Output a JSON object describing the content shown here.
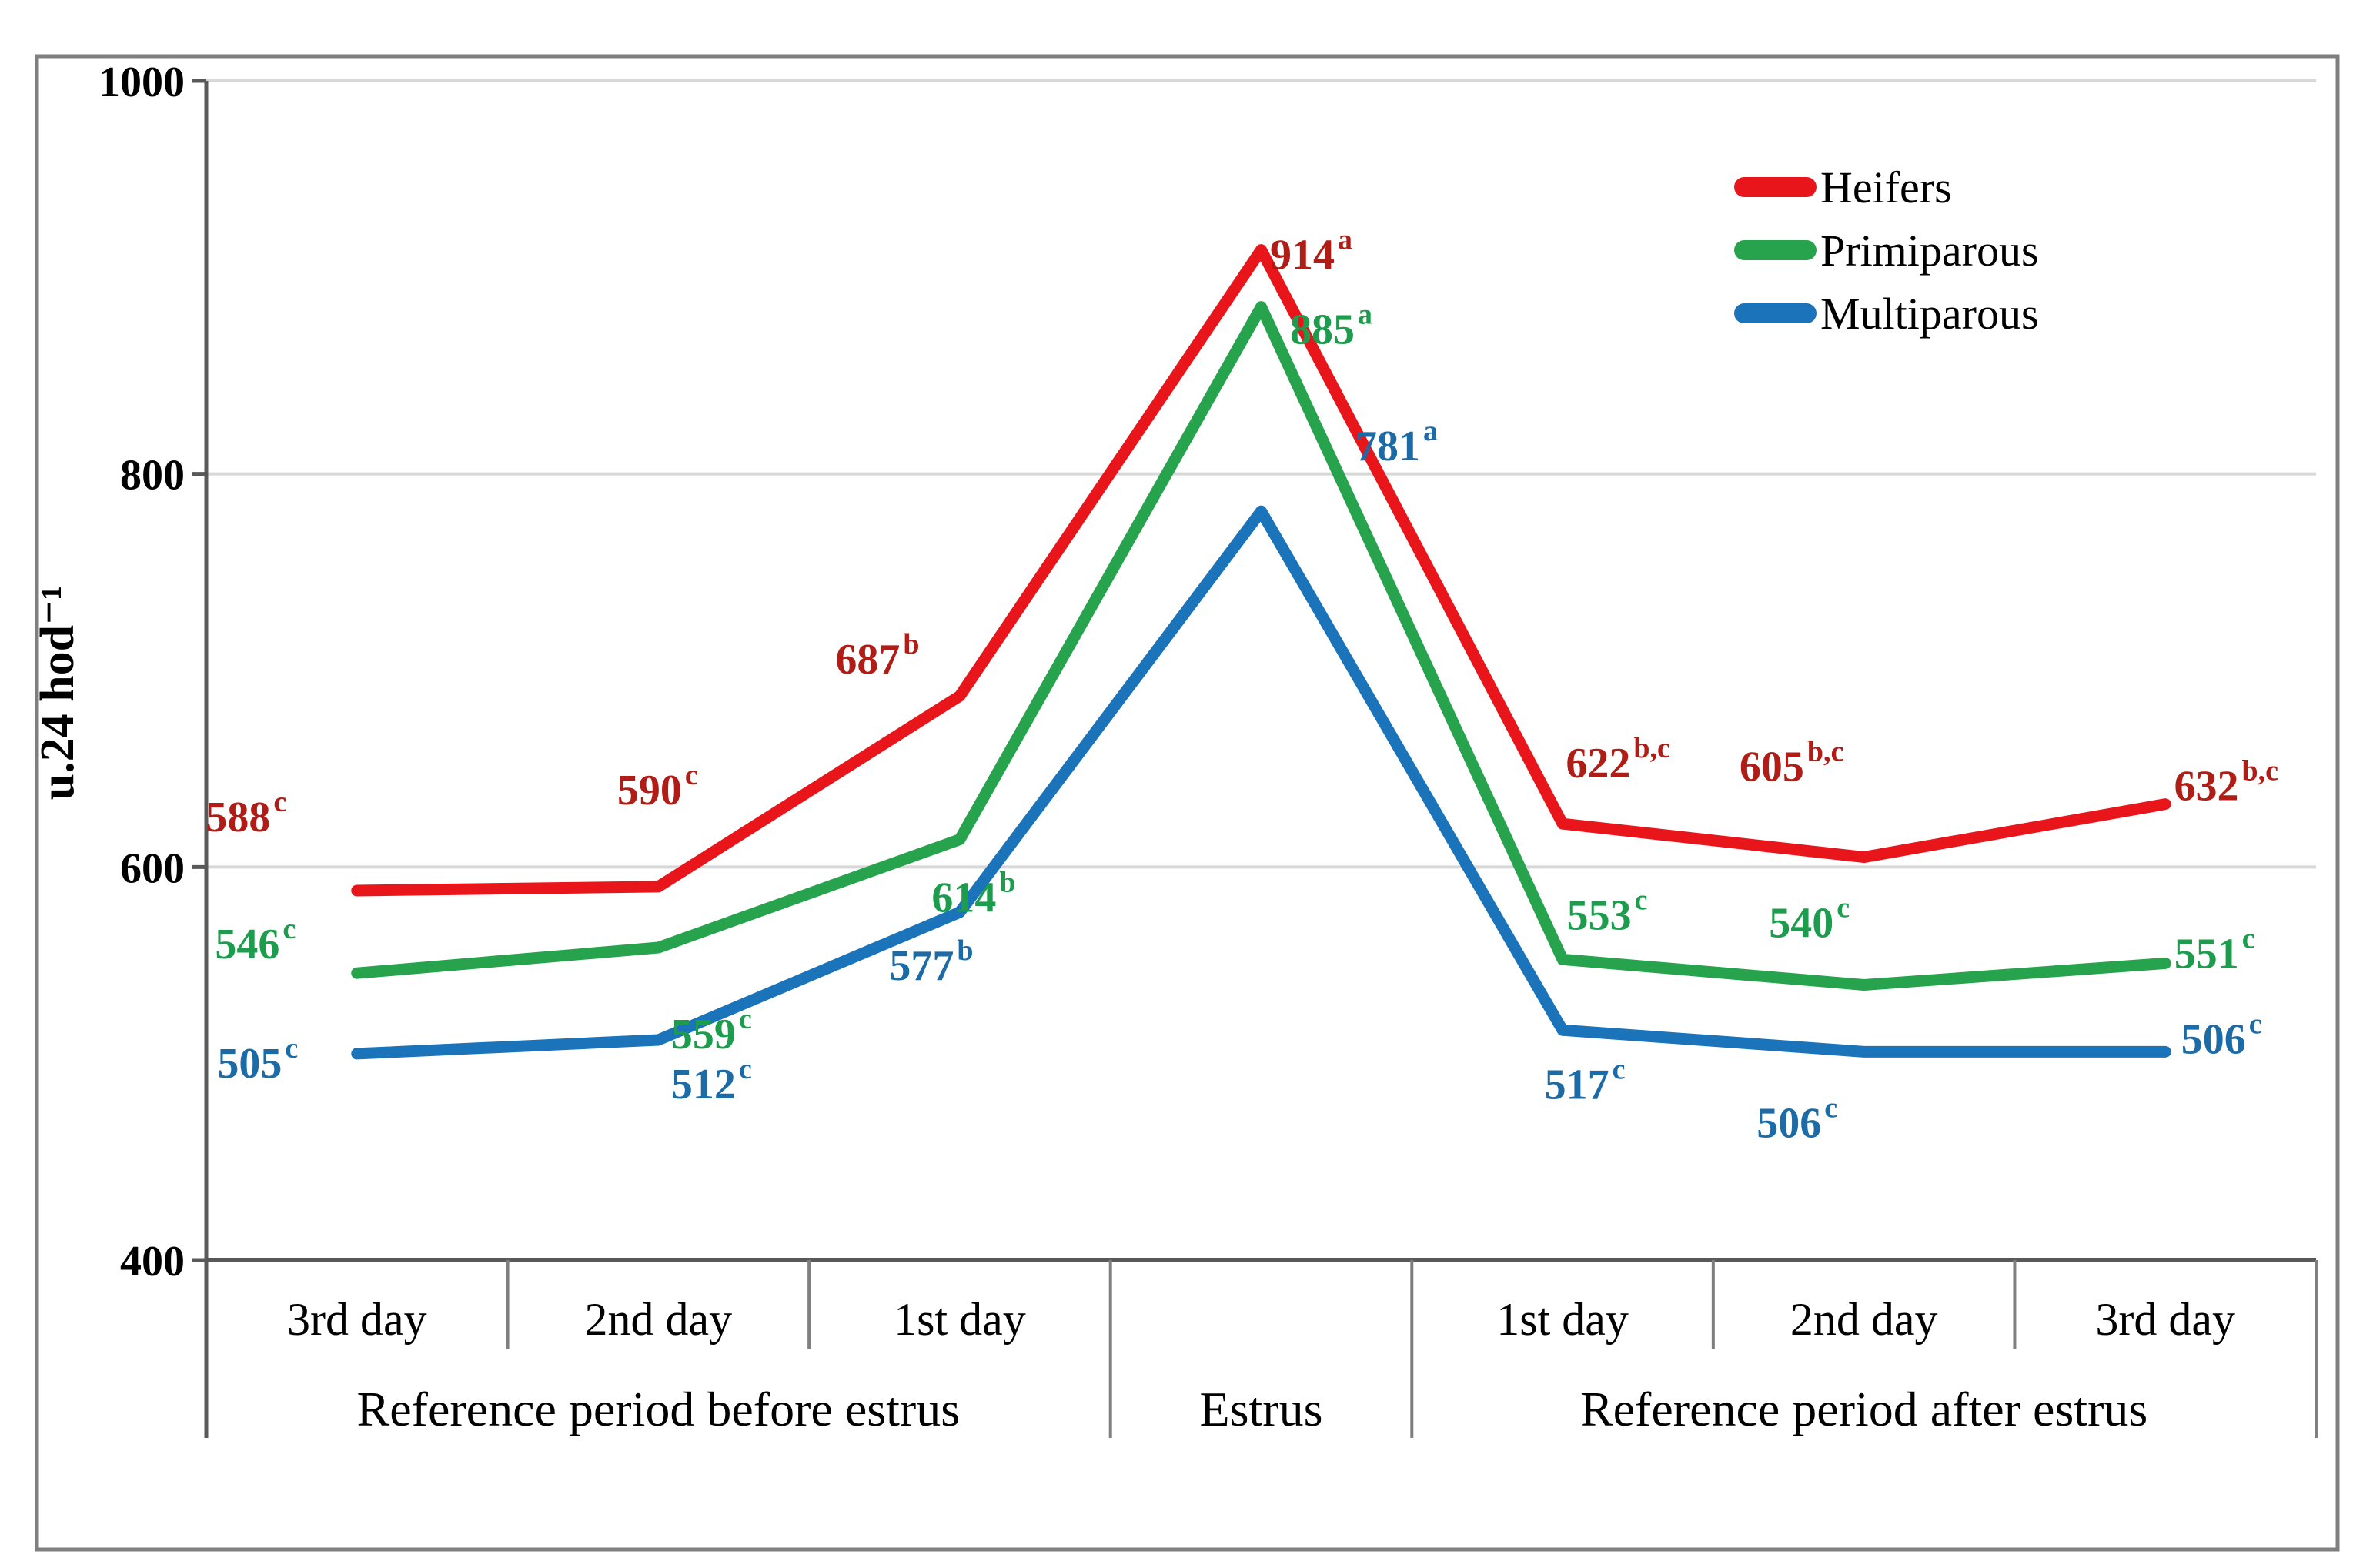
{
  "chart_data": {
    "type": "line",
    "title": "",
    "ylabel": "u.24 hod⁻¹",
    "xlabel": "",
    "ylim": [
      400,
      1000
    ],
    "yticks": [
      400,
      600,
      800,
      1000
    ],
    "grid": "horizontal",
    "legend_position": "top-right",
    "categories": [
      "3rd day",
      "2nd day",
      "1st day",
      "",
      "1st day",
      "2nd day",
      "3rd day"
    ],
    "groups": [
      {
        "label": "Reference period before estrus",
        "span": [
          0,
          3
        ]
      },
      {
        "label": "Estrus",
        "span": [
          3,
          4
        ]
      },
      {
        "label": "Reference period after estrus",
        "span": [
          4,
          7
        ]
      }
    ],
    "series": [
      {
        "name": "Heifers",
        "line_color": "#e8161b",
        "label_color": "#b01d16",
        "values": [
          588,
          590,
          687,
          914,
          622,
          605,
          632
        ],
        "superscripts": [
          "c",
          "c",
          "b",
          "a",
          "b,c",
          "b,c",
          "b,c"
        ]
      },
      {
        "name": "Primiparous",
        "line_color": "#27a24d",
        "label_color": "#1e9c4d",
        "values": [
          546,
          559,
          614,
          885,
          553,
          540,
          551
        ],
        "superscripts": [
          "c",
          "c",
          "b",
          "a",
          "c",
          "c",
          "c"
        ]
      },
      {
        "name": "Multiparous",
        "line_color": "#1b73ba",
        "label_color": "#1c6ba6",
        "values": [
          505,
          512,
          577,
          781,
          517,
          506,
          506
        ],
        "superscripts": [
          "c",
          "c",
          "b",
          "a",
          "c",
          "c",
          "c"
        ]
      }
    ],
    "colors": {
      "gridline": "#d8d8d8",
      "axis": "#595959",
      "border": "#7f7f7f",
      "text": "#000000"
    }
  }
}
